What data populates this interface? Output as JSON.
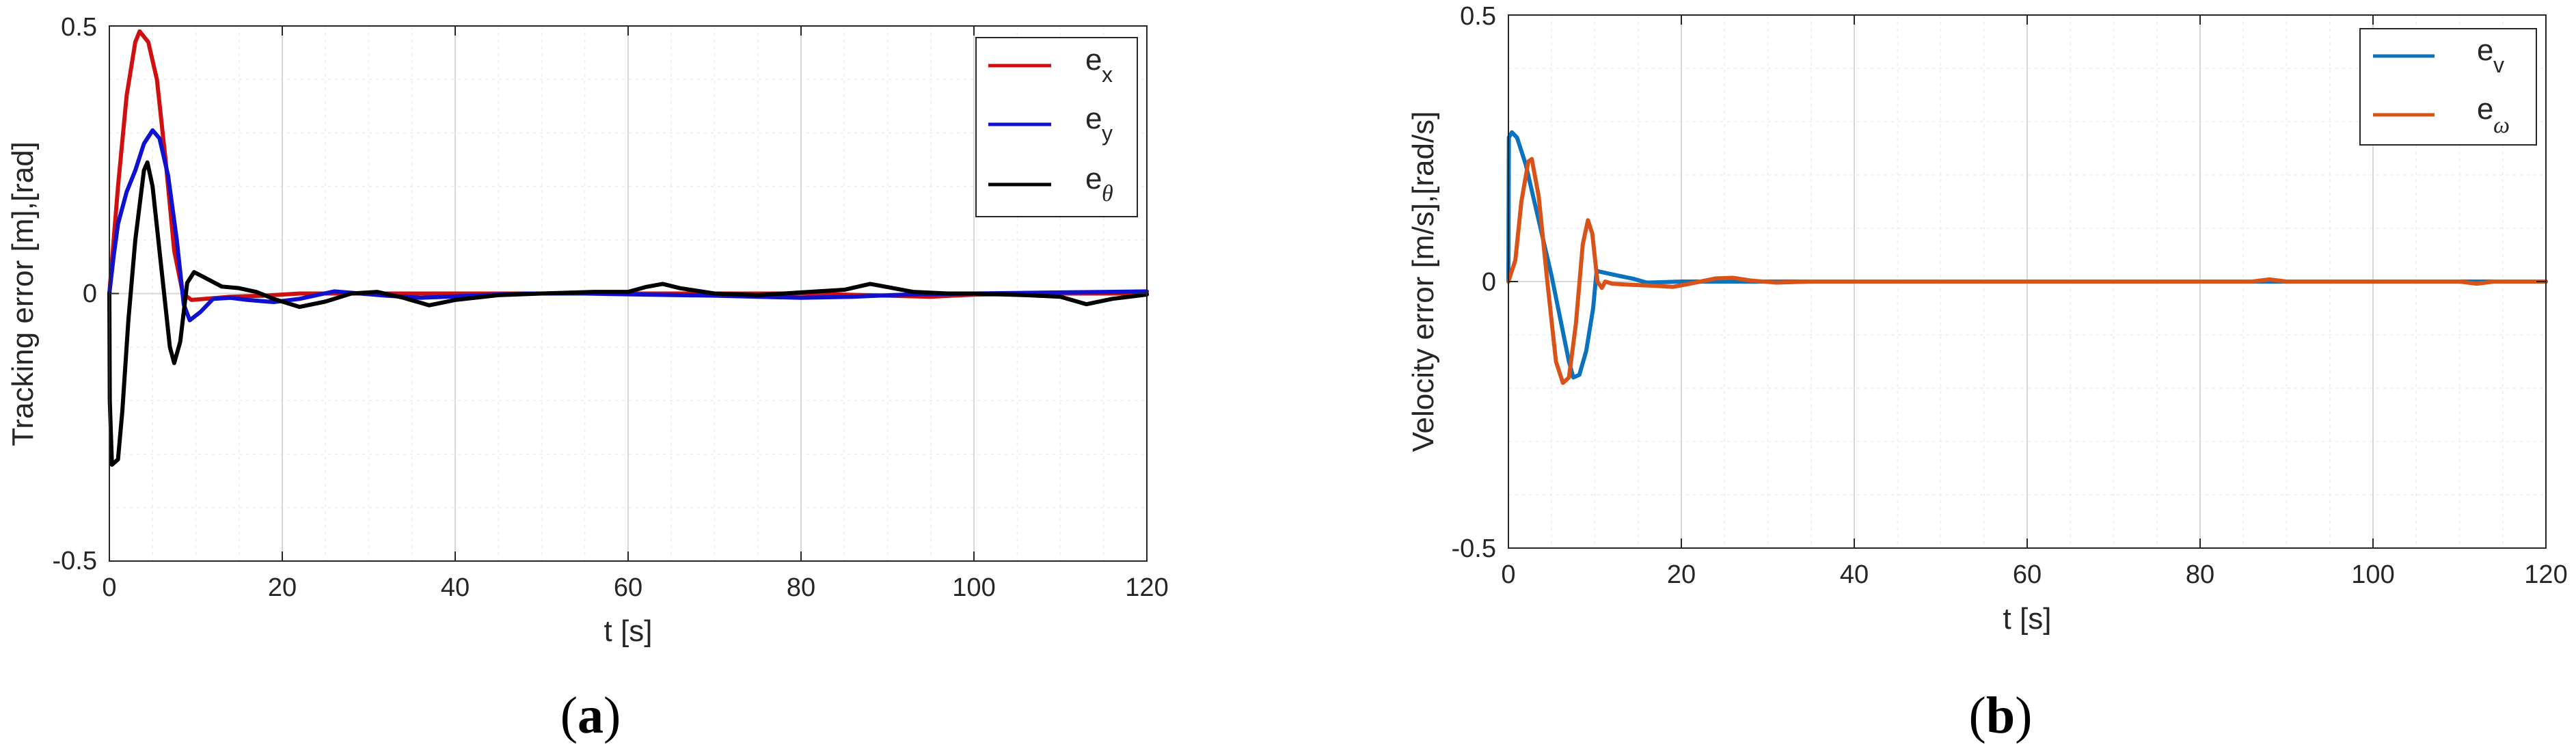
{
  "chart_data": [
    {
      "type": "line",
      "panel_label": "a",
      "xlabel": "t [s]",
      "ylabel": "Tracking error [m],[rad]",
      "xlim": [
        0,
        120
      ],
      "ylim": [
        -0.5,
        0.5
      ],
      "x_ticks": [
        "0",
        "20",
        "40",
        "60",
        "80",
        "100",
        "120"
      ],
      "y_ticks": [
        "-0.5",
        "0",
        "0.5"
      ],
      "grid": true,
      "minor_grid": true,
      "legend_position": "top-right",
      "series": [
        {
          "name": "e_x",
          "label_main": "e",
          "label_sub": "x",
          "color": "#d01010",
          "points": [
            [
              0,
              0
            ],
            [
              0.5,
              0.1
            ],
            [
              1,
              0.2
            ],
            [
              2,
              0.37
            ],
            [
              3,
              0.47
            ],
            [
              3.5,
              0.49
            ],
            [
              4.5,
              0.47
            ],
            [
              5.5,
              0.4
            ],
            [
              6.5,
              0.25
            ],
            [
              7.5,
              0.08
            ],
            [
              8.5,
              0.0
            ],
            [
              9.5,
              -0.012
            ],
            [
              11,
              -0.01
            ],
            [
              14,
              -0.006
            ],
            [
              18,
              -0.004
            ],
            [
              22,
              0.0
            ],
            [
              30,
              0.0
            ],
            [
              40,
              0.0
            ],
            [
              50,
              0.0
            ],
            [
              60,
              0.0
            ],
            [
              70,
              0.0
            ],
            [
              80,
              0.0
            ],
            [
              90,
              -0.004
            ],
            [
              95,
              -0.006
            ],
            [
              100,
              -0.002
            ],
            [
              110,
              0.0
            ],
            [
              120,
              0.0
            ]
          ]
        },
        {
          "name": "e_y",
          "label_main": "e",
          "label_sub": "y",
          "color": "#1010d0",
          "points": [
            [
              0,
              0
            ],
            [
              0.5,
              0.07
            ],
            [
              1,
              0.13
            ],
            [
              2,
              0.19
            ],
            [
              3,
              0.23
            ],
            [
              4,
              0.28
            ],
            [
              5,
              0.305
            ],
            [
              5.8,
              0.29
            ],
            [
              6.8,
              0.22
            ],
            [
              7.8,
              0.1
            ],
            [
              8.6,
              -0.02
            ],
            [
              9.3,
              -0.05
            ],
            [
              10.5,
              -0.035
            ],
            [
              12,
              -0.01
            ],
            [
              14,
              -0.008
            ],
            [
              16,
              -0.012
            ],
            [
              19,
              -0.016
            ],
            [
              22,
              -0.01
            ],
            [
              26,
              0.004
            ],
            [
              29,
              0.0
            ],
            [
              32,
              -0.004
            ],
            [
              36,
              -0.008
            ],
            [
              42,
              -0.004
            ],
            [
              48,
              0.0
            ],
            [
              55,
              0.0
            ],
            [
              62,
              -0.002
            ],
            [
              70,
              -0.004
            ],
            [
              80,
              -0.008
            ],
            [
              86,
              -0.006
            ],
            [
              92,
              -0.002
            ],
            [
              100,
              0.0
            ],
            [
              110,
              0.002
            ],
            [
              120,
              0.004
            ]
          ]
        },
        {
          "name": "e_θ",
          "label_main": "e",
          "label_sub": "θ",
          "color": "#000000",
          "points": [
            [
              0,
              0
            ],
            [
              0.05,
              -0.2
            ],
            [
              0.3,
              -0.32
            ],
            [
              1,
              -0.31
            ],
            [
              1.5,
              -0.22
            ],
            [
              2.2,
              -0.05
            ],
            [
              3,
              0.1
            ],
            [
              4,
              0.23
            ],
            [
              4.4,
              0.245
            ],
            [
              5,
              0.2
            ],
            [
              6,
              0.05
            ],
            [
              7,
              -0.1
            ],
            [
              7.5,
              -0.13
            ],
            [
              8.2,
              -0.09
            ],
            [
              9,
              0.02
            ],
            [
              9.8,
              0.04
            ],
            [
              11,
              0.03
            ],
            [
              13,
              0.013
            ],
            [
              15,
              0.01
            ],
            [
              17,
              0.003
            ],
            [
              19,
              -0.01
            ],
            [
              22,
              -0.025
            ],
            [
              25,
              -0.015
            ],
            [
              28,
              0.0
            ],
            [
              31,
              0.003
            ],
            [
              34,
              -0.008
            ],
            [
              37,
              -0.022
            ],
            [
              40,
              -0.012
            ],
            [
              45,
              -0.003
            ],
            [
              50,
              0.0
            ],
            [
              56,
              0.003
            ],
            [
              60,
              0.003
            ],
            [
              62,
              0.012
            ],
            [
              64,
              0.018
            ],
            [
              66,
              0.01
            ],
            [
              70,
              0.0
            ],
            [
              75,
              -0.003
            ],
            [
              80,
              0.002
            ],
            [
              85,
              0.007
            ],
            [
              88,
              0.018
            ],
            [
              90,
              0.012
            ],
            [
              93,
              0.003
            ],
            [
              97,
              0.0
            ],
            [
              100,
              0.0
            ],
            [
              106,
              -0.003
            ],
            [
              110,
              -0.006
            ],
            [
              113,
              -0.02
            ],
            [
              116,
              -0.01
            ],
            [
              118,
              -0.006
            ],
            [
              120,
              -0.002
            ]
          ]
        }
      ]
    },
    {
      "type": "line",
      "panel_label": "b",
      "xlabel": "t [s]",
      "ylabel": "Velocity error [m/s],[rad/s]",
      "xlim": [
        0,
        120
      ],
      "ylim": [
        -0.5,
        0.5
      ],
      "x_ticks": [
        "0",
        "20",
        "40",
        "60",
        "80",
        "100",
        "120"
      ],
      "y_ticks": [
        "-0.5",
        "0",
        "0.5"
      ],
      "grid": true,
      "minor_grid": true,
      "legend_position": "top-right",
      "series": [
        {
          "name": "e_v",
          "label_main": "e",
          "label_sub": "v",
          "color": "#0b72bd",
          "points": [
            [
              0,
              0
            ],
            [
              0.05,
              0.27
            ],
            [
              0.4,
              0.28
            ],
            [
              1,
              0.27
            ],
            [
              2,
              0.22
            ],
            [
              3,
              0.15
            ],
            [
              4,
              0.08
            ],
            [
              5,
              0.01
            ],
            [
              6,
              -0.07
            ],
            [
              7,
              -0.15
            ],
            [
              7.5,
              -0.18
            ],
            [
              8.2,
              -0.175
            ],
            [
              9,
              -0.13
            ],
            [
              9.8,
              -0.05
            ],
            [
              10.2,
              0.02
            ],
            [
              11,
              0.017
            ],
            [
              13,
              0.01
            ],
            [
              14.5,
              0.005
            ],
            [
              16,
              -0.002
            ],
            [
              20,
              0.0
            ],
            [
              30,
              0.0
            ],
            [
              60,
              0.0
            ],
            [
              90,
              0.0
            ],
            [
              120,
              0.0
            ]
          ]
        },
        {
          "name": "e_ω",
          "label_main": "e",
          "label_sub": "ω",
          "color": "#d95319",
          "points": [
            [
              0,
              0
            ],
            [
              0.8,
              0.04
            ],
            [
              1.5,
              0.15
            ],
            [
              2.3,
              0.225
            ],
            [
              2.7,
              0.23
            ],
            [
              3.5,
              0.16
            ],
            [
              4.5,
              0.0
            ],
            [
              5.5,
              -0.15
            ],
            [
              6.3,
              -0.19
            ],
            [
              7,
              -0.18
            ],
            [
              7.8,
              -0.08
            ],
            [
              8.6,
              0.07
            ],
            [
              9.2,
              0.115
            ],
            [
              9.7,
              0.09
            ],
            [
              10.3,
              0.0
            ],
            [
              10.8,
              -0.012
            ],
            [
              11.2,
              0.0
            ],
            [
              12,
              -0.004
            ],
            [
              14,
              -0.006
            ],
            [
              17,
              -0.008
            ],
            [
              19,
              -0.01
            ],
            [
              21,
              -0.004
            ],
            [
              24,
              0.006
            ],
            [
              26,
              0.007
            ],
            [
              28,
              0.002
            ],
            [
              31,
              -0.002
            ],
            [
              35,
              0.0
            ],
            [
              45,
              0.0
            ],
            [
              60,
              0.0
            ],
            [
              75,
              0.0
            ],
            [
              86,
              0.0
            ],
            [
              88,
              0.004
            ],
            [
              90,
              0.0
            ],
            [
              100,
              0.0
            ],
            [
              110,
              0.0
            ],
            [
              112,
              -0.004
            ],
            [
              114,
              0.0
            ],
            [
              120,
              0.0
            ]
          ]
        }
      ]
    }
  ]
}
